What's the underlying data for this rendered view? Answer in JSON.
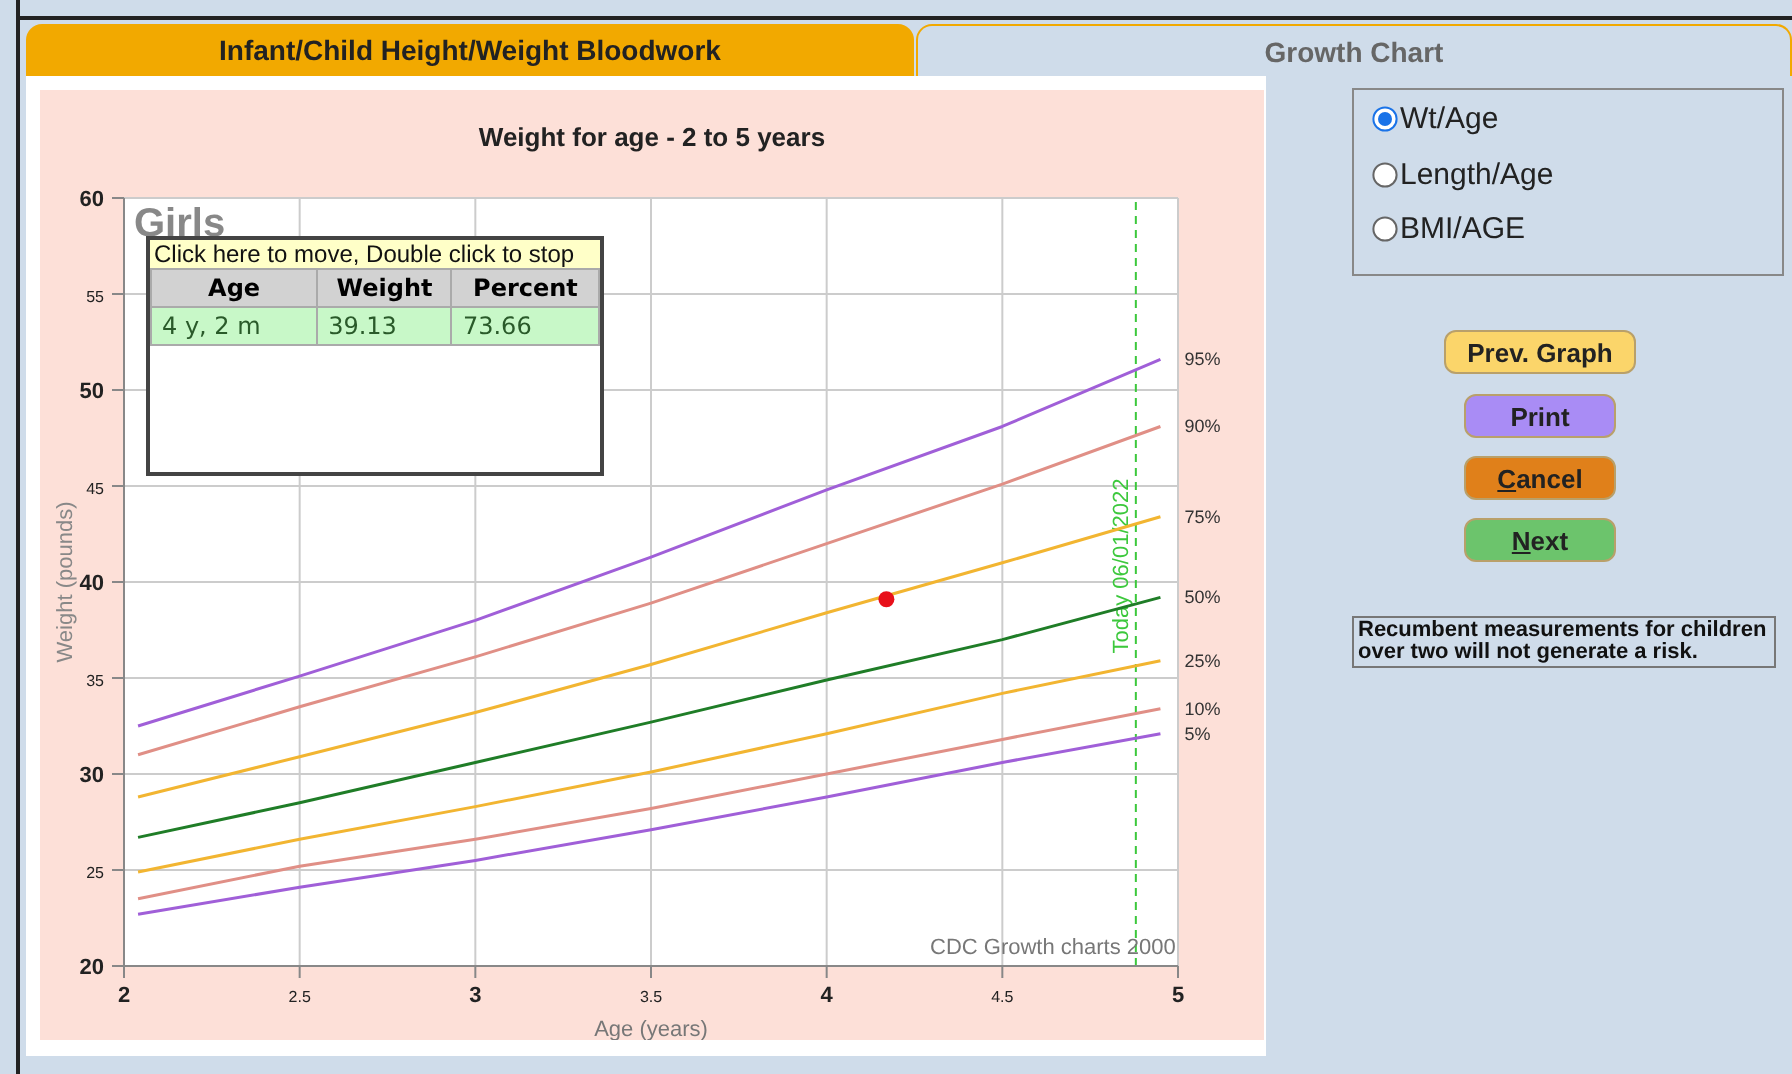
{
  "chart_data": {
    "type": "line",
    "title": "Weight for age - 2 to 5 years",
    "xlabel": "Age (years)",
    "ylabel": "Weight (pounds)",
    "x": [
      2.04,
      2.5,
      3,
      3.5,
      4,
      4.5,
      4.95
    ],
    "series": [
      {
        "name": "95%",
        "color": "#a05fd8",
        "values": [
          32.5,
          35.1,
          38.0,
          41.3,
          44.8,
          48.1,
          51.6
        ]
      },
      {
        "name": "90%",
        "color": "#e08f86",
        "values": [
          31.0,
          33.5,
          36.1,
          38.9,
          42.0,
          45.1,
          48.1
        ]
      },
      {
        "name": "75%",
        "color": "#f2b531",
        "values": [
          28.8,
          30.9,
          33.2,
          35.7,
          38.4,
          41.0,
          43.4
        ]
      },
      {
        "name": "50%",
        "color": "#1f7d27",
        "values": [
          26.7,
          28.5,
          30.6,
          32.7,
          34.9,
          37.0,
          39.2
        ]
      },
      {
        "name": "25%",
        "color": "#f2b531",
        "values": [
          24.9,
          26.6,
          28.3,
          30.1,
          32.1,
          34.2,
          35.9
        ]
      },
      {
        "name": "10%",
        "color": "#e08f86",
        "values": [
          23.5,
          25.2,
          26.6,
          28.2,
          30.0,
          31.8,
          33.4
        ]
      },
      {
        "name": "5%",
        "color": "#a05fd8",
        "values": [
          22.7,
          24.1,
          25.5,
          27.1,
          28.8,
          30.6,
          32.1
        ]
      },
      {
        "type": "scatter",
        "color": "#e8101a",
        "x": [
          4.17
        ],
        "values": [
          39.1
        ]
      }
    ],
    "xlim": [
      2,
      5
    ],
    "xticks": [
      2,
      2.5,
      3,
      3.5,
      4,
      4.5,
      5
    ],
    "ylim": [
      20,
      60
    ],
    "yticks": [
      20,
      25,
      30,
      35,
      40,
      45,
      50,
      55,
      60
    ],
    "grid": true,
    "ref_lines": [
      {
        "axis": "x",
        "value": 4.88,
        "label": "Today 06/01/2022",
        "color": "#3cc83c",
        "line_style": "dashed"
      }
    ],
    "annotations": [
      "Girls",
      "CDC Growth charts 2000",
      "Click here to move, Double click to stop",
      "Age",
      "Weight",
      "Percent",
      "4 y, 2 m",
      "39.13",
      "73.66",
      "Infant/Child Height/Weight Bloodwork",
      "Growth Chart",
      "Wt/Age",
      "Length/Age",
      "BMI/AGE",
      "Prev. Graph",
      "Print",
      "Cancel",
      "Next",
      "Recumbent measurements for children over two will not generate a risk."
    ]
  }
}
